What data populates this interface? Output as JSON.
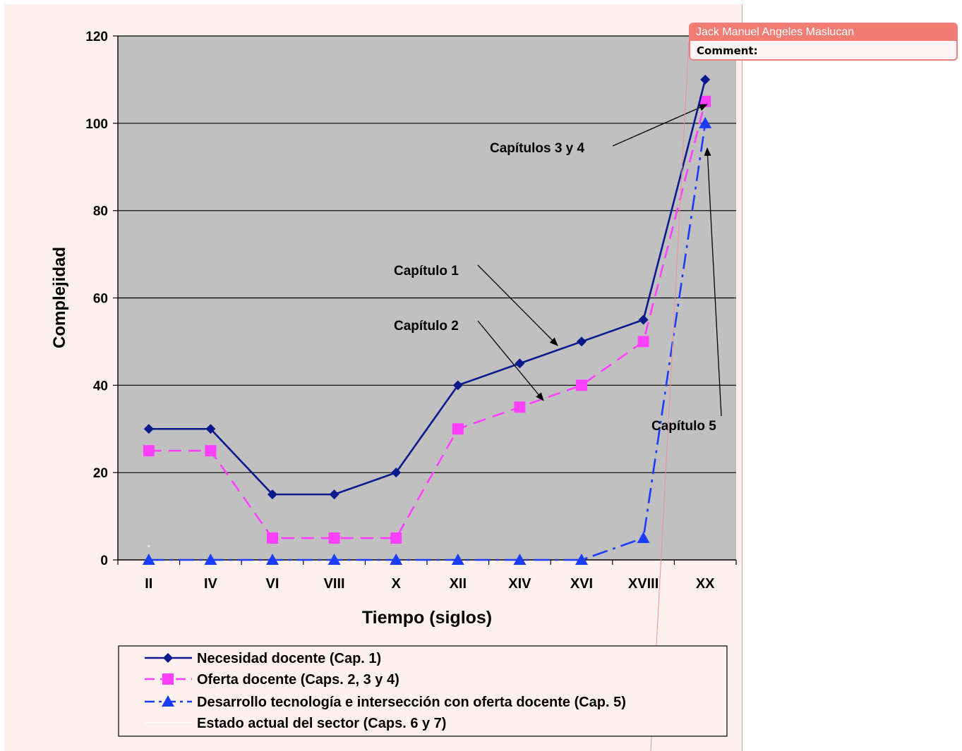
{
  "chart_data": {
    "type": "line",
    "title": "",
    "xlabel": "Tiempo (siglos)",
    "ylabel": "Complejidad",
    "categories": [
      "II",
      "IV",
      "VI",
      "VIII",
      "X",
      "XII",
      "XIV",
      "XVI",
      "XVIII",
      "XX"
    ],
    "ylim": [
      0,
      120
    ],
    "yticks": [
      "0",
      "20",
      "40",
      "60",
      "80",
      "100",
      "120"
    ],
    "grid": true,
    "legend_position": "bottom",
    "series": [
      {
        "name": "Necesidad docente (Cap. 1)",
        "values": [
          30,
          30,
          15,
          15,
          20,
          40,
          45,
          50,
          55,
          110
        ],
        "color": "#0a1a8c",
        "marker": "diamond",
        "style": "solid"
      },
      {
        "name": "Oferta docente (Caps. 2, 3 y 4)",
        "values": [
          25,
          25,
          5,
          5,
          5,
          30,
          35,
          40,
          50,
          105
        ],
        "color": "#ff40ff",
        "marker": "square",
        "style": "dashed"
      },
      {
        "name": "Desarrollo tecnología e intersección con oferta docente (Cap. 5)",
        "values": [
          0,
          0,
          0,
          0,
          0,
          0,
          0,
          0,
          5,
          100
        ],
        "color": "#1a3cff",
        "marker": "triangle",
        "style": "dashdot"
      },
      {
        "name": "Estado actual del sector (Caps. 6 y 7)",
        "values": [
          3,
          null,
          null,
          null,
          null,
          null,
          null,
          null,
          null,
          null
        ],
        "color": "#ffffff",
        "marker": "star",
        "style": "solid"
      }
    ],
    "annotations": [
      {
        "text": "Capítulos 3 y 4",
        "target": {
          "x": "XX",
          "y": 105
        }
      },
      {
        "text": "Capítulo 1",
        "target": {
          "x": "XVI",
          "y": 50
        }
      },
      {
        "text": "Capítulo 2",
        "target": {
          "x": "XVI",
          "y": 38
        }
      },
      {
        "text": "Capítulo 5",
        "target": {
          "x": "XX",
          "y": 95
        }
      }
    ],
    "colors": {
      "plot_background": "#c0c0c0",
      "page_background": "#fff0f0",
      "gridline": "#000000"
    }
  },
  "comment": {
    "author": "Jack Manuel Angeles Maslucan",
    "label": "Comment:"
  }
}
